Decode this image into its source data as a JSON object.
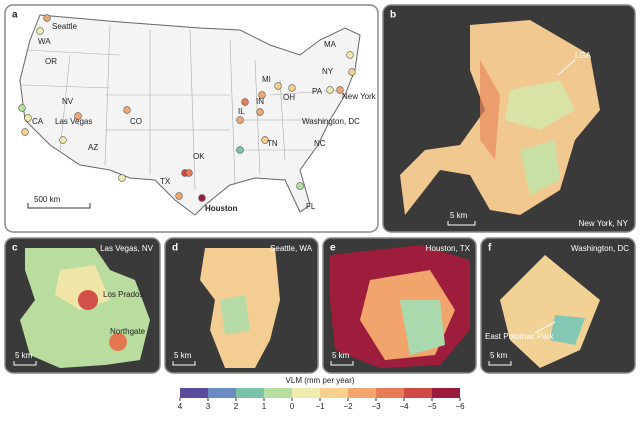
{
  "panel_a": {
    "letter": "a",
    "labels": [
      "Seattle",
      "WA",
      "OR",
      "NV",
      "CA",
      "Las Vegas",
      "AZ",
      "CO",
      "TX",
      "OK",
      "Houston",
      "IL",
      "IN",
      "MI",
      "OH",
      "TN",
      "NC",
      "PA",
      "NY",
      "MA",
      "New York",
      "Washington, DC",
      "FL"
    ],
    "scale": "500 km"
  },
  "panel_b": {
    "letter": "b",
    "title": "New York, NY",
    "labels": [
      "LGA"
    ],
    "scale": "5 km"
  },
  "panel_c": {
    "letter": "c",
    "title": "Las Vegas, NV",
    "labels": [
      "Los Prados",
      "Northgate"
    ],
    "scale": "5 km"
  },
  "panel_d": {
    "letter": "d",
    "title": "Seattle, WA",
    "scale": "5 km"
  },
  "panel_e": {
    "letter": "e",
    "title": "Houston, TX",
    "scale": "5 km"
  },
  "panel_f": {
    "letter": "f",
    "title": "Washington, DC",
    "labels": [
      "East Potomac Park"
    ],
    "scale": "5 km"
  },
  "colorbar": {
    "title": "VLM (mm per year)",
    "lim": [
      4,
      -6
    ],
    "ticks": [
      4,
      3,
      2,
      1,
      0,
      {
        "value": -1,
        "label": "−1"
      },
      {
        "value": -2,
        "label": "−2"
      },
      {
        "value": -3,
        "label": "−3"
      },
      {
        "value": -4,
        "label": "−4"
      },
      {
        "value": -5,
        "label": "−5"
      },
      {
        "value": -6,
        "label": "−6"
      }
    ],
    "colors": [
      "#5a4b9d",
      "#6b8cc0",
      "#79c4ab",
      "#b6dfa0",
      "#f0ecb0",
      "#f7cf8e",
      "#f2a66e",
      "#e77b55",
      "#cf4a45",
      "#9c1a3c"
    ]
  }
}
